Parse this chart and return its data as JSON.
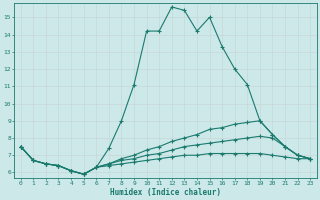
{
  "xlabel": "Humidex (Indice chaleur)",
  "bg_color": "#cce8e8",
  "grid_color": "#aad4d4",
  "line_color": "#1a7a6e",
  "xlim": [
    -0.5,
    23.5
  ],
  "ylim": [
    5.7,
    15.8
  ],
  "yticks": [
    6,
    7,
    8,
    9,
    10,
    11,
    12,
    13,
    14,
    15
  ],
  "xticks": [
    0,
    1,
    2,
    3,
    4,
    5,
    6,
    7,
    8,
    9,
    10,
    11,
    12,
    13,
    14,
    15,
    16,
    17,
    18,
    19,
    20,
    21,
    22,
    23
  ],
  "series": [
    {
      "x": [
        0,
        1,
        2,
        3,
        4,
        5,
        6,
        7,
        8,
        9,
        10,
        11,
        12,
        13,
        14,
        15,
        16,
        17,
        18,
        19,
        20,
        21,
        22,
        23
      ],
      "y": [
        7.5,
        6.7,
        6.5,
        6.4,
        6.1,
        5.9,
        6.3,
        7.4,
        9.0,
        11.1,
        14.2,
        14.2,
        15.6,
        15.4,
        14.2,
        15.0,
        13.3,
        12.0,
        11.1,
        9.0,
        8.2,
        7.5,
        7.0,
        6.8
      ]
    },
    {
      "x": [
        0,
        1,
        2,
        3,
        4,
        5,
        6,
        7,
        8,
        9,
        10,
        11,
        12,
        13,
        14,
        15,
        16,
        17,
        18,
        19,
        20,
        21,
        22,
        23
      ],
      "y": [
        7.5,
        6.7,
        6.5,
        6.4,
        6.1,
        5.9,
        6.3,
        6.5,
        6.8,
        7.0,
        7.3,
        7.5,
        7.8,
        8.0,
        8.2,
        8.5,
        8.6,
        8.8,
        8.9,
        9.0,
        8.2,
        7.5,
        7.0,
        6.8
      ]
    },
    {
      "x": [
        0,
        1,
        2,
        3,
        4,
        5,
        6,
        7,
        8,
        9,
        10,
        11,
        12,
        13,
        14,
        15,
        16,
        17,
        18,
        19,
        20,
        21,
        22,
        23
      ],
      "y": [
        7.5,
        6.7,
        6.5,
        6.4,
        6.1,
        5.9,
        6.3,
        6.5,
        6.7,
        6.8,
        7.0,
        7.1,
        7.3,
        7.5,
        7.6,
        7.7,
        7.8,
        7.9,
        8.0,
        8.1,
        8.0,
        7.5,
        7.0,
        6.8
      ]
    },
    {
      "x": [
        0,
        1,
        2,
        3,
        4,
        5,
        6,
        7,
        8,
        9,
        10,
        11,
        12,
        13,
        14,
        15,
        16,
        17,
        18,
        19,
        20,
        21,
        22,
        23
      ],
      "y": [
        7.5,
        6.7,
        6.5,
        6.4,
        6.1,
        5.9,
        6.3,
        6.4,
        6.5,
        6.6,
        6.7,
        6.8,
        6.9,
        7.0,
        7.0,
        7.1,
        7.1,
        7.1,
        7.1,
        7.1,
        7.0,
        6.9,
        6.8,
        6.8
      ]
    }
  ]
}
